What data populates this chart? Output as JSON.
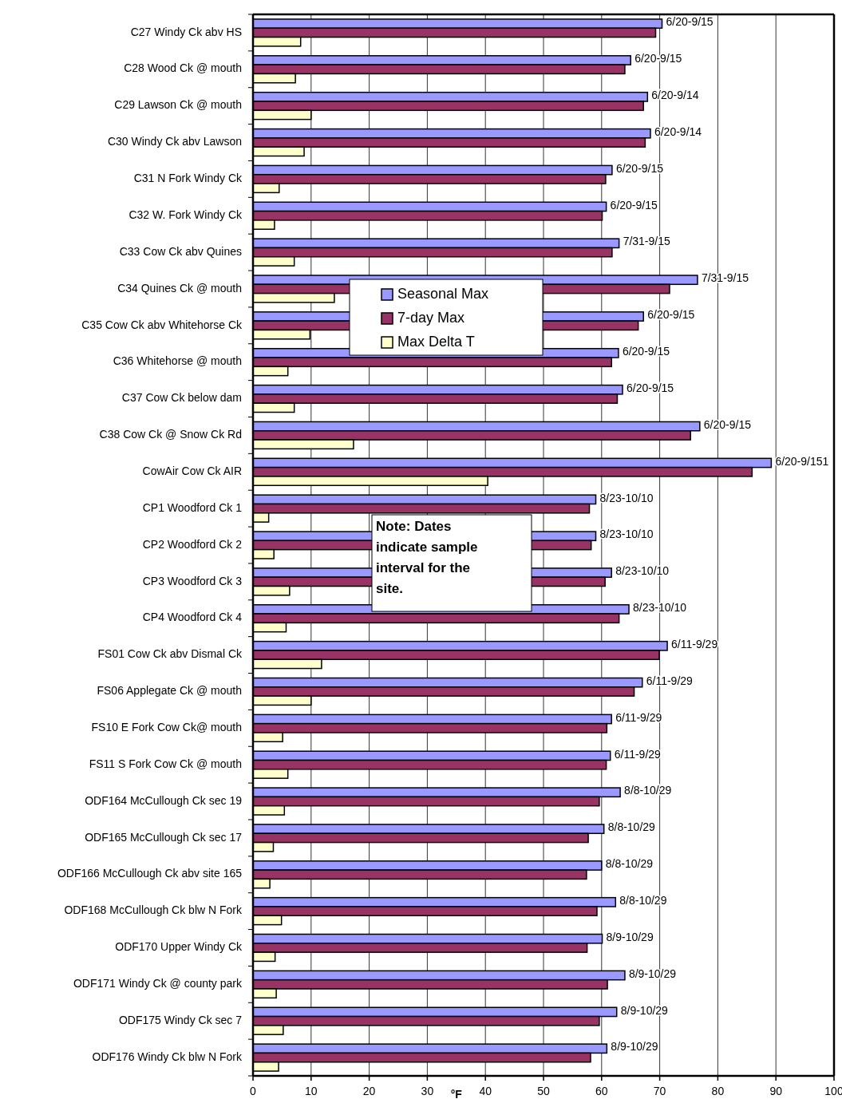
{
  "chart_data": {
    "type": "bar",
    "orientation": "horizontal",
    "xlabel": "°F",
    "categories": [
      "C27 Windy Ck abv HS",
      "C28 Wood Ck @ mouth",
      "C29 Lawson Ck @ mouth",
      "C30 Windy Ck abv Lawson",
      "C31 N Fork Windy Ck",
      "C32 W. Fork Windy Ck",
      "C33 Cow Ck abv Quines",
      "C34 Quines Ck @ mouth",
      "C35 Cow Ck abv Whitehorse Ck",
      "C36 Whitehorse @ mouth",
      "C37 Cow Ck below dam",
      "C38 Cow Ck @ Snow Ck Rd",
      "CowAir Cow Ck AIR",
      "CP1 Woodford Ck 1",
      "CP2 Woodford Ck 2",
      "CP3 Woodford Ck 3",
      "CP4 Woodford Ck 4",
      "FS01 Cow Ck abv Dismal Ck",
      "FS06 Applegate Ck @ mouth",
      "FS10 E Fork Cow Ck@ mouth",
      "FS11 S Fork Cow Ck @ mouth",
      "ODF164 McCullough Ck sec 19",
      "ODF165 McCullough Ck sec 17",
      "ODF166 McCullough Ck abv site 165",
      "ODF168 McCullough Ck blw N Fork",
      "ODF170 Upper Windy Ck",
      "ODF171 Windy Ck @ county park",
      "ODF175 Windy Ck sec 7",
      "ODF176 Windy Ck blw N Fork"
    ],
    "series": [
      {
        "name": "Seasonal Max",
        "color": "#9999ff",
        "values": [
          70.4,
          65.0,
          67.9,
          68.4,
          61.8,
          60.8,
          63.0,
          76.5,
          67.2,
          62.9,
          63.6,
          76.9,
          89.2,
          59.0,
          59.0,
          61.7,
          64.7,
          71.3,
          67.0,
          61.7,
          61.5,
          63.2,
          60.4,
          60.0,
          62.4,
          60.1,
          64.0,
          62.6,
          60.9
        ],
        "value_labels": [
          "6/20-9/15",
          "6/20-9/15",
          "6/20-9/14",
          "6/20-9/14",
          "6/20-9/15",
          "6/20-9/15",
          "7/31-9/15",
          "7/31-9/15",
          "6/20-9/15",
          "6/20-9/15",
          "6/20-9/15",
          "6/20-9/15",
          "6/20-9/151",
          "8/23-10/10",
          "8/23-10/10",
          "8/23-10/10",
          "8/23-10/10",
          "6/11-9/29",
          "6/11-9/29",
          "6/11-9/29",
          "6/11-9/29",
          "8/8-10/29",
          "8/8-10/29",
          "8/8-10/29",
          "8/8-10/29",
          "8/9-10/29",
          "8/9-10/29",
          "8/9-10/29",
          "8/9-10/29"
        ]
      },
      {
        "name": "7-day Max",
        "color": "#993366",
        "values": [
          69.3,
          64.0,
          67.2,
          67.5,
          60.7,
          60.1,
          61.8,
          71.7,
          66.3,
          61.7,
          62.7,
          75.3,
          85.9,
          57.9,
          58.2,
          60.6,
          63.0,
          69.9,
          65.6,
          60.9,
          60.8,
          59.6,
          57.7,
          57.4,
          59.2,
          57.5,
          61.0,
          59.6,
          58.1
        ]
      },
      {
        "name": "Max  Delta T",
        "color": "#ffffcc",
        "values": [
          8.2,
          7.3,
          10.0,
          8.8,
          4.5,
          3.7,
          7.1,
          14,
          9.8,
          6.0,
          7.1,
          17.3,
          40.4,
          2.7,
          3.6,
          6.3,
          5.7,
          11.8,
          10.0,
          5.1,
          6.0,
          5.4,
          3.5,
          2.9,
          4.9,
          3.8,
          4.0,
          5.2,
          4.4
        ]
      }
    ],
    "xlim": [
      0,
      100
    ],
    "xticks": [
      0,
      10,
      20,
      30,
      40,
      50,
      60,
      70,
      80,
      90,
      100
    ],
    "grid": "x",
    "legend": "top left",
    "annotations": [
      "Note: Dates indicate sample interval for the site."
    ]
  }
}
